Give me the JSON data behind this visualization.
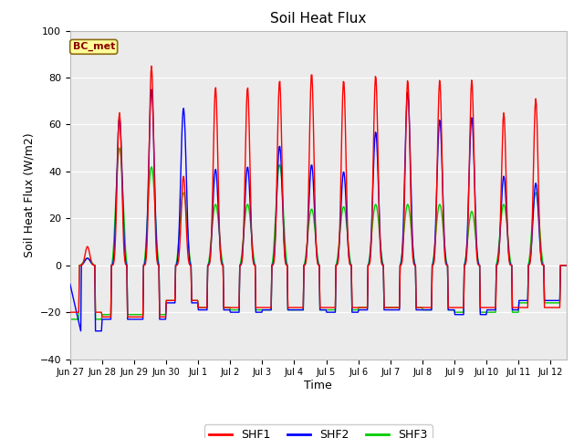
{
  "title": "Soil Heat Flux",
  "ylabel": "Soil Heat Flux (W/m2)",
  "xlabel": "Time",
  "ylim": [
    -40,
    100
  ],
  "fig_bg_color": "#ffffff",
  "plot_bg_color": "#ebebeb",
  "legend_label": "BC_met",
  "series_labels": [
    "SHF1",
    "SHF2",
    "SHF3"
  ],
  "series_colors": [
    "#ff0000",
    "#0000ff",
    "#00cc00"
  ],
  "xtick_labels": [
    "Jun 27",
    "Jun 28",
    "Jun 29",
    "Jun 30",
    "Jul 1",
    "Jul 2",
    "Jul 3",
    "Jul 4",
    "Jul 5",
    "Jul 6",
    "Jul 7",
    "Jul 8",
    "Jul 9",
    "Jul 10",
    "Jul 11",
    "Jul 12"
  ],
  "grid_color": "#ffffff",
  "yticks": [
    -40,
    -20,
    0,
    20,
    40,
    60,
    80,
    100
  ],
  "day_amplitudes_shf1": [
    8,
    65,
    85,
    38,
    76,
    76,
    79,
    82,
    79,
    81,
    79,
    79,
    79,
    65,
    71,
    0
  ],
  "day_amplitudes_shf2": [
    3,
    63,
    75,
    67,
    41,
    42,
    51,
    43,
    40,
    57,
    74,
    62,
    63,
    38,
    35,
    0
  ],
  "day_amplitudes_shf3": [
    3,
    50,
    42,
    31,
    26,
    26,
    43,
    24,
    25,
    26,
    26,
    26,
    23,
    26,
    31,
    0
  ],
  "night_vals_shf1": [
    -20,
    -22,
    -22,
    -15,
    -18,
    -18,
    -18,
    -18,
    -18,
    -18,
    -18,
    -18,
    -18,
    -18,
    -18,
    -18
  ],
  "night_vals_shf2": [
    -28,
    -23,
    -23,
    -16,
    -19,
    -20,
    -19,
    -19,
    -20,
    -19,
    -19,
    -19,
    -21,
    -19,
    -15,
    -15
  ],
  "night_vals_shf3": [
    -23,
    -21,
    -21,
    -15,
    -18,
    -19,
    -19,
    -19,
    -19,
    -18,
    -18,
    -19,
    -20,
    -20,
    -16,
    -16
  ],
  "n_days": 15.5,
  "points_per_day": 48
}
